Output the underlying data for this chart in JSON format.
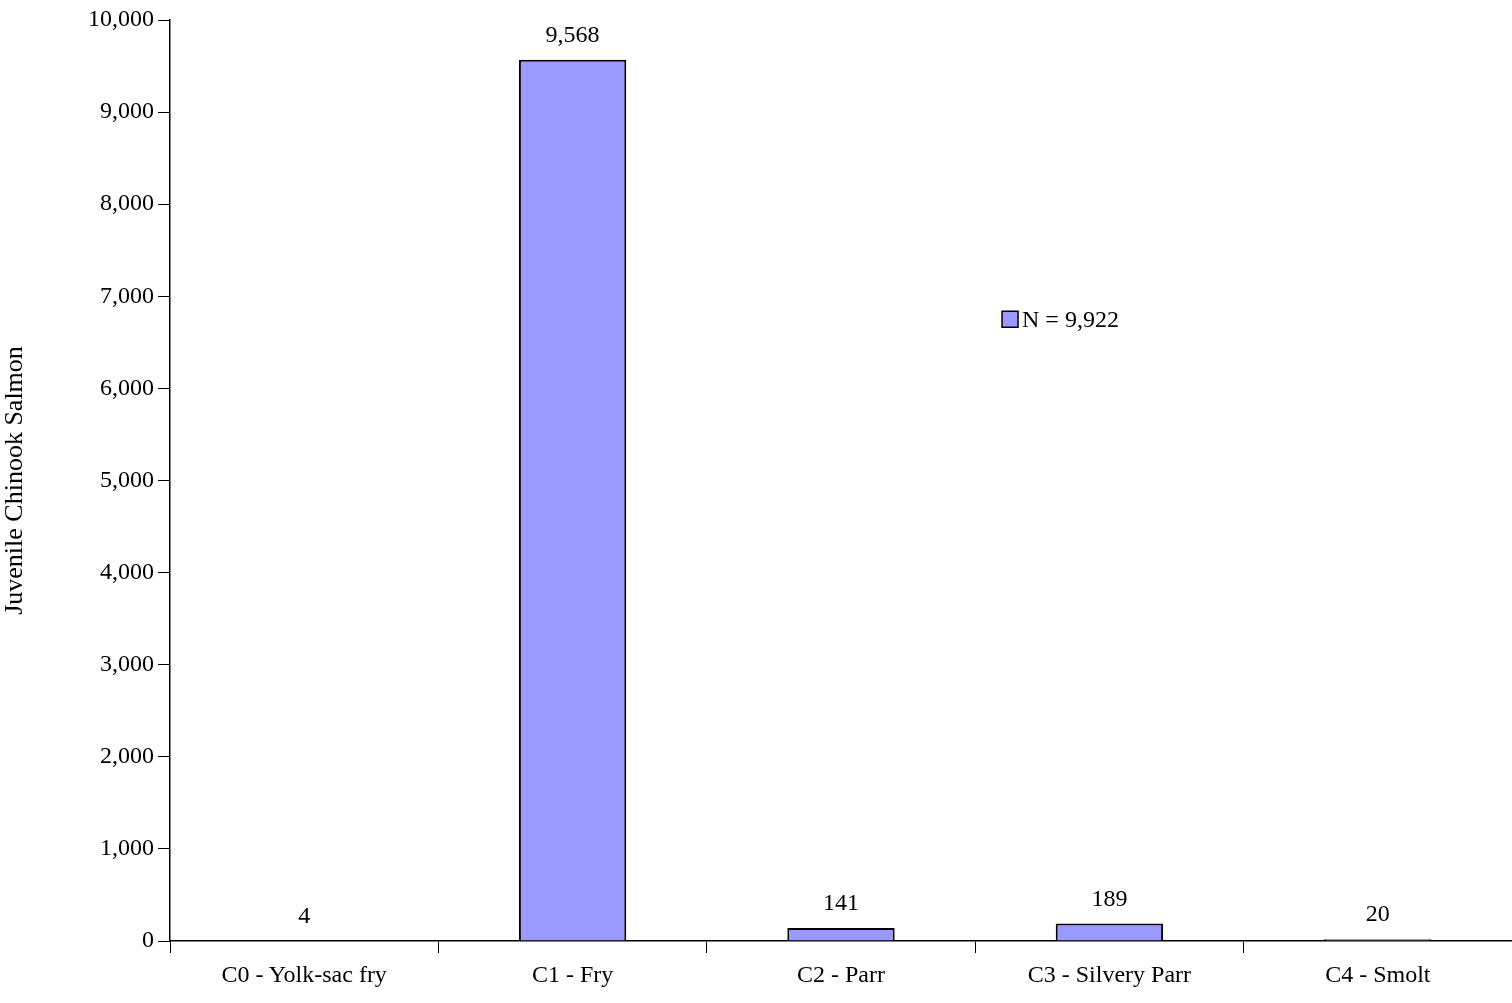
{
  "chart_data": {
    "type": "bar",
    "ylabel": "Juvenile Chinook Salmon",
    "categories": [
      "C0 - Yolk-sac fry",
      "C1 - Fry",
      "C2 - Parr",
      "C3 - Silvery Parr",
      "C4 - Smolt"
    ],
    "series": [
      {
        "name": "N = 9,922",
        "color": "#9999ff",
        "values": [
          4,
          9568,
          141,
          189,
          20
        ],
        "value_labels": [
          "4",
          "9,568",
          "141",
          "189",
          "20"
        ]
      }
    ],
    "ylim": [
      0,
      10000
    ],
    "yticks": [
      0,
      {
        "value": 1000,
        "label": "1,000"
      },
      {
        "value": 2000,
        "label": "2,000"
      },
      {
        "value": 3000,
        "label": "3,000"
      },
      {
        "value": 4000,
        "label": "4,000"
      },
      {
        "value": 5000,
        "label": "5,000"
      },
      {
        "value": 6000,
        "label": "6,000"
      },
      {
        "value": 7000,
        "label": "7,000"
      },
      {
        "value": 8000,
        "label": "8,000"
      },
      {
        "value": 9000,
        "label": "9,000"
      },
      {
        "value": 10000,
        "label": "10,000"
      }
    ],
    "grid": false,
    "legend": "right"
  }
}
